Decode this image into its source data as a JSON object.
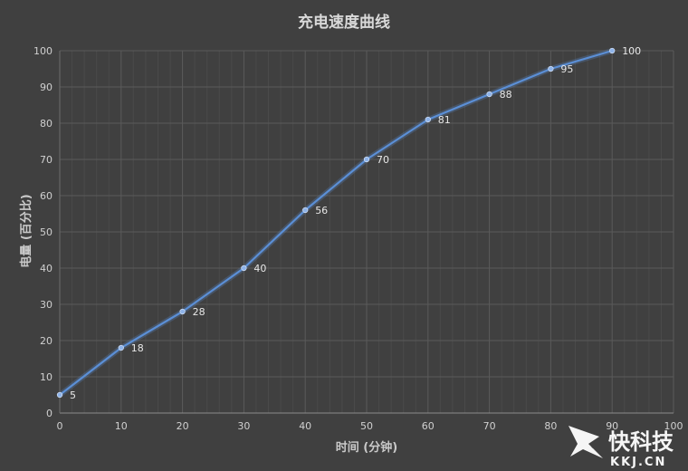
{
  "chart_data": {
    "type": "line",
    "title": "充电速度曲线",
    "xlabel": "时间 (分钟)",
    "ylabel": "电量 (百分比)",
    "x": [
      0,
      10,
      20,
      30,
      40,
      50,
      60,
      70,
      80,
      90
    ],
    "series": [
      {
        "values": [
          5,
          18,
          28,
          40,
          56,
          70,
          81,
          88,
          95,
          100
        ]
      }
    ],
    "xlim": [
      0,
      100
    ],
    "ylim": [
      0,
      100
    ],
    "xticks": [
      "0",
      "10",
      "20",
      "30",
      "40",
      "50",
      "60",
      "70",
      "80",
      "90",
      "100"
    ],
    "yticks": [
      "0",
      "10",
      "20",
      "30",
      "40",
      "50",
      "60",
      "70",
      "80",
      "90",
      "100"
    ],
    "grid": true,
    "data_labels": true,
    "colors": {
      "background": "#404040",
      "line": "#5b8fd6",
      "marker": "#8fb4ea",
      "grid": "#5a5a5a"
    }
  },
  "watermark": {
    "brand": "快科技",
    "domain": "KKJ.CN"
  }
}
